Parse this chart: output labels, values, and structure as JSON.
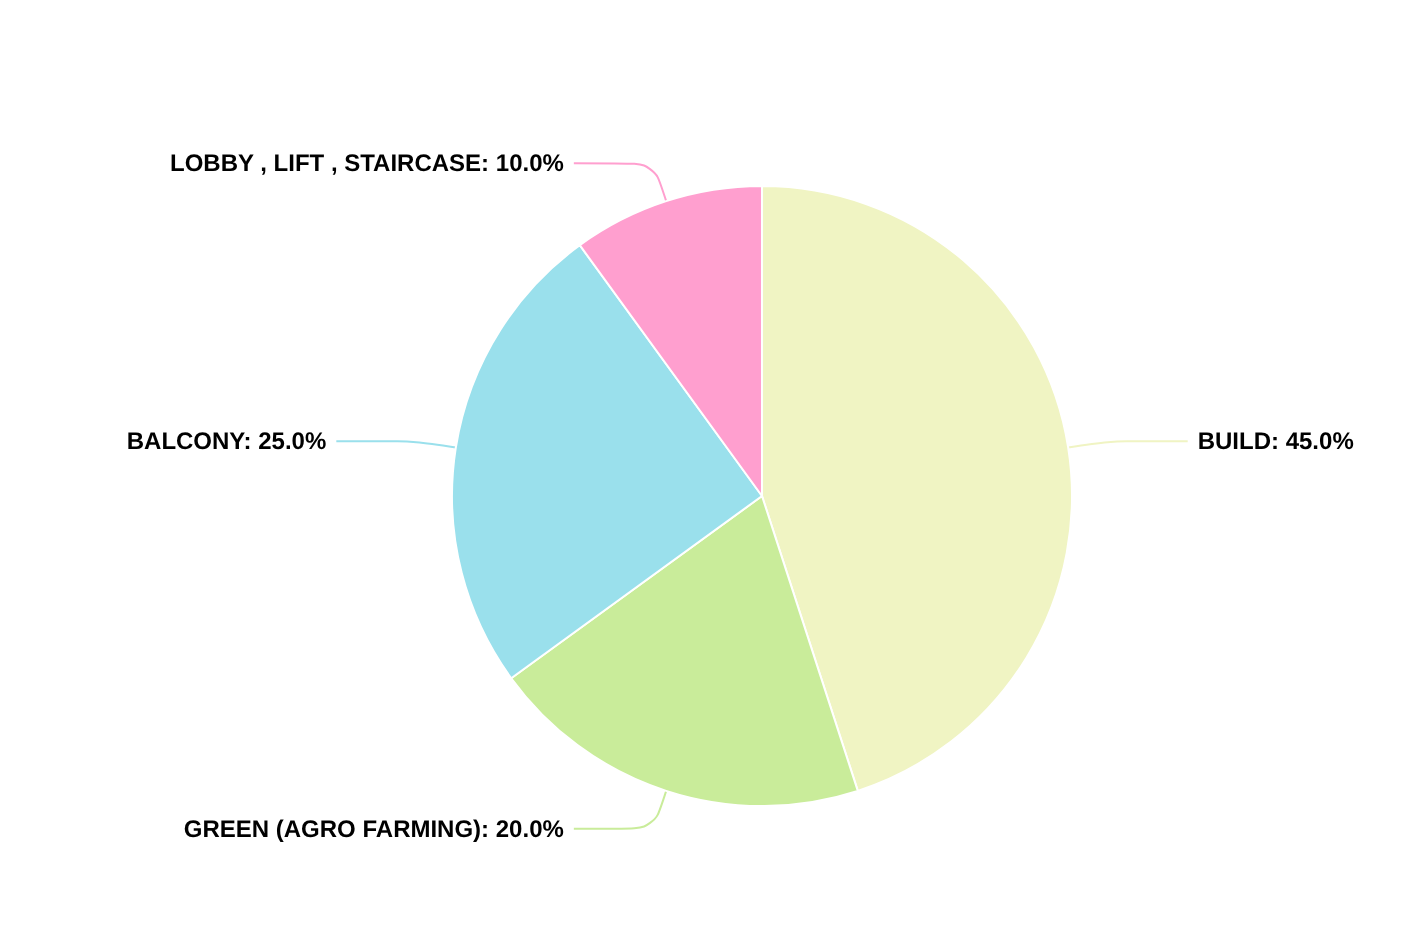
{
  "chart_data": {
    "type": "pie",
    "categories": [
      "BUILD",
      "GREEN (AGRO FARMING)",
      "BALCONY",
      "LOBBY , LIFT , STAIRCASE"
    ],
    "values": [
      45,
      20,
      25,
      10
    ],
    "value_labels": [
      "45.0%",
      "20.0%",
      "25.0%",
      "10.0%"
    ],
    "colors": [
      "#f0f4c3",
      "#c9ec9a",
      "#9ae0ec",
      "#ff9fcf"
    ],
    "legend": false
  }
}
